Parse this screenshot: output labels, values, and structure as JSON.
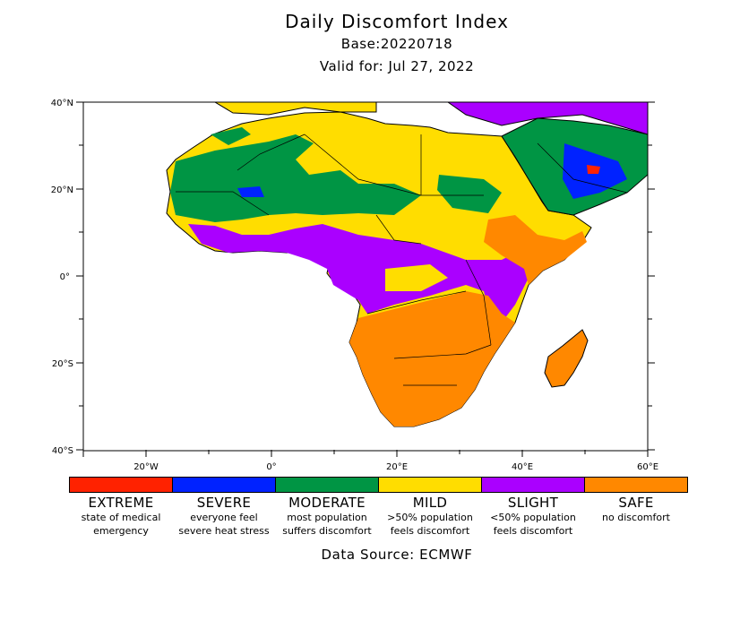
{
  "header": {
    "title": "Daily Discomfort Index",
    "base": "Base:20220718",
    "valid": "Valid for: Jul 27, 2022"
  },
  "map": {
    "lat_labels": [
      "40°N",
      "20°N",
      "0°",
      "20°S",
      "40°S"
    ],
    "lon_labels": [
      "20°W",
      "0°",
      "20°E",
      "40°E",
      "60°E"
    ]
  },
  "legend": [
    {
      "name": "EXTREME",
      "color": "#ff2200",
      "desc1": "state of medical",
      "desc2": "emergency"
    },
    {
      "name": "SEVERE",
      "color": "#0022ff",
      "desc1": "everyone feel",
      "desc2": "severe heat stress"
    },
    {
      "name": "MODERATE",
      "color": "#009544",
      "desc1": "most population",
      "desc2": "suffers discomfort"
    },
    {
      "name": "MILD",
      "color": "#ffdd00",
      "desc1": ">50% population",
      "desc2": "feels discomfort"
    },
    {
      "name": "SLIGHT",
      "color": "#aa00ff",
      "desc1": "<50% population",
      "desc2": "feels discomfort"
    },
    {
      "name": "SAFE",
      "color": "#ff8800",
      "desc1": "no discomfort",
      "desc2": ""
    }
  ],
  "footer": {
    "source": "Data Source: ECMWF"
  }
}
